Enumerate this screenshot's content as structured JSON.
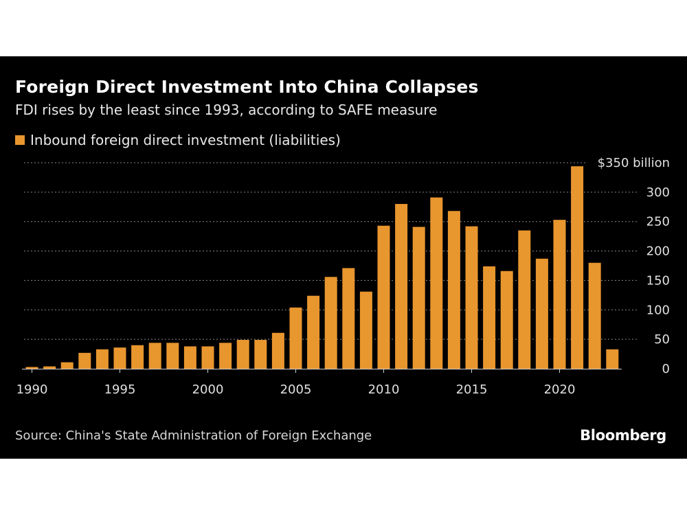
{
  "colors": {
    "background": "#000000",
    "bar": "#E8962E",
    "grid": "#8a8a8a",
    "text": "#ffffff"
  },
  "header": {
    "title": "Foreign Direct Investment Into China Collapses",
    "subtitle": "FDI rises by the least since 1993, according to SAFE measure"
  },
  "footer": {
    "source": "Source: China's State Administration of Foreign Exchange",
    "brand": "Bloomberg"
  },
  "chart_data": {
    "type": "bar",
    "series": [
      {
        "name": "Inbound foreign direct investment (liabilities)",
        "values": [
          3,
          4,
          11,
          27,
          33,
          36,
          40,
          44,
          44,
          38,
          38,
          44,
          49,
          49,
          61,
          104,
          124,
          156,
          171,
          131,
          243,
          280,
          241,
          291,
          268,
          242,
          174,
          166,
          235,
          187,
          253,
          344,
          180,
          33
        ]
      }
    ],
    "categories": [
      1990,
      1991,
      1992,
      1993,
      1994,
      1995,
      1996,
      1997,
      1998,
      1999,
      2000,
      2001,
      2002,
      2003,
      2004,
      2005,
      2006,
      2007,
      2008,
      2009,
      2010,
      2011,
      2012,
      2013,
      2014,
      2015,
      2016,
      2017,
      2018,
      2019,
      2020,
      2021,
      2022,
      2023
    ],
    "x_tick_labels": [
      "1990",
      "1995",
      "2000",
      "2005",
      "2010",
      "2015",
      "2020"
    ],
    "y_ticks": [
      0,
      50,
      100,
      150,
      200,
      250,
      300,
      350
    ],
    "y_tick_labels": [
      "0",
      "50",
      "100",
      "150",
      "200",
      "250",
      "300",
      "$350 billion"
    ],
    "ylim": [
      0,
      350
    ],
    "grid": true,
    "legend": "top-left"
  }
}
